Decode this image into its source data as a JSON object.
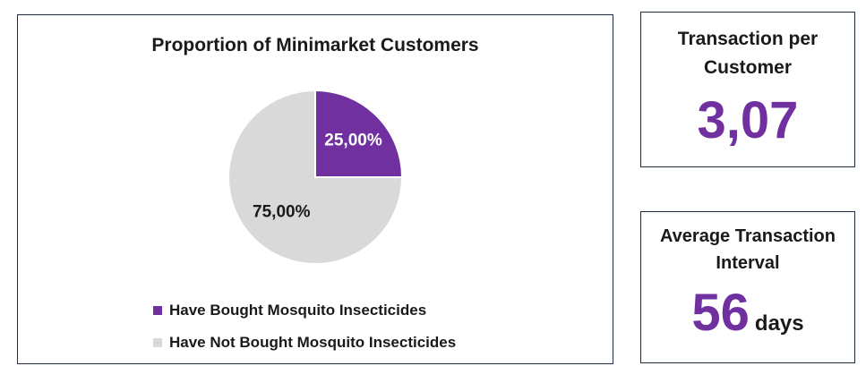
{
  "chart_data": {
    "type": "pie",
    "title": "Proportion of Minimarket Customers",
    "slices": [
      {
        "label": "Have Bought Mosquito Insecticides",
        "value": 25.0,
        "display": "25,00%",
        "color": "#7030a0"
      },
      {
        "label": "Have Not Bought Mosquito Insecticides",
        "value": 75.0,
        "display": "75,00%",
        "color": "#d9d9d9"
      }
    ],
    "legend_position": "bottom-left"
  },
  "kpis": [
    {
      "label": "Transaction per Customer",
      "value": "3,07",
      "unit": "",
      "value_color": "#7030a0"
    },
    {
      "label": "Average Transaction Interval",
      "value": "56",
      "unit": "days",
      "value_color": "#7030a0"
    }
  ],
  "colors": {
    "accent": "#7030a0",
    "border": "#1f2a44"
  }
}
